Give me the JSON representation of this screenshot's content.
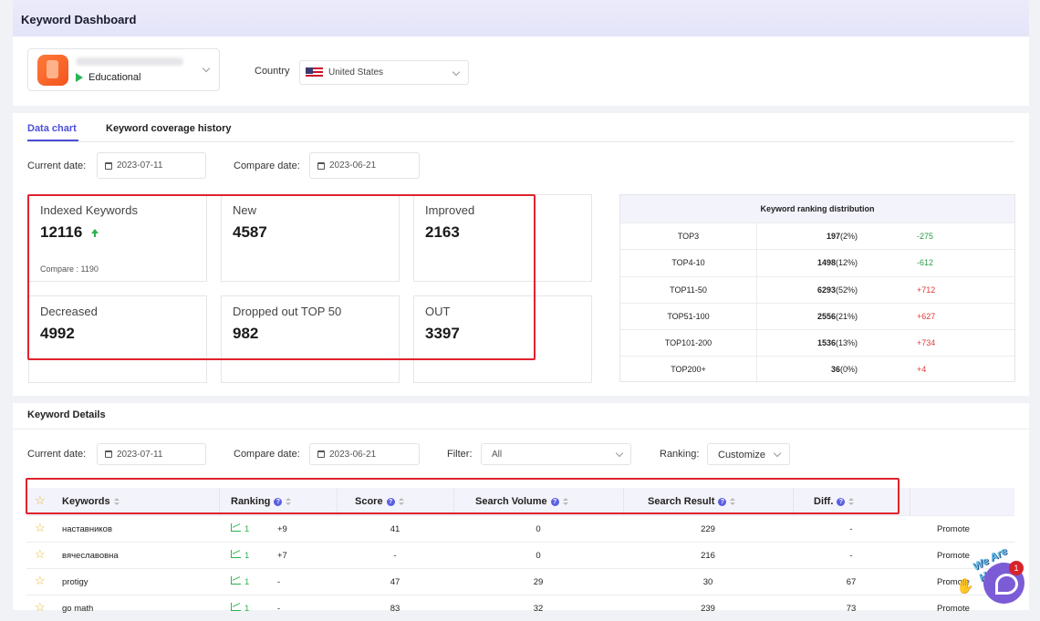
{
  "header": {
    "title": "Keyword Dashboard"
  },
  "app": {
    "category": "Educational"
  },
  "country": {
    "label": "Country",
    "value": "United States"
  },
  "tabs": [
    {
      "label": "Data chart"
    },
    {
      "label": "Keyword coverage history"
    }
  ],
  "dates": {
    "current_label": "Current date:",
    "current": "2023-07-11",
    "compare_label": "Compare date:",
    "compare": "2023-06-21"
  },
  "stats": [
    {
      "label": "Indexed Keywords",
      "value": "12116",
      "trend": "up",
      "compare": "Compare : 1190"
    },
    {
      "label": "New",
      "value": "4587"
    },
    {
      "label": "Improved",
      "value": "2163"
    },
    {
      "label": "Decreased",
      "value": "4992"
    },
    {
      "label": "Dropped out TOP 50",
      "value": "982"
    },
    {
      "label": "OUT",
      "value": "3397"
    }
  ],
  "distribution": {
    "title": "Keyword ranking distribution",
    "rows": [
      {
        "range": "TOP3",
        "count": "197",
        "pct": "(2%)",
        "change": "-275",
        "color": "#2b9a47"
      },
      {
        "range": "TOP4-10",
        "count": "1498",
        "pct": "(12%)",
        "change": "-612",
        "color": "#2b9a47"
      },
      {
        "range": "TOP11-50",
        "count": "6293",
        "pct": "(52%)",
        "change": "+712",
        "color": "#e53a3a"
      },
      {
        "range": "TOP51-100",
        "count": "2556",
        "pct": "(21%)",
        "change": "+627",
        "color": "#e53a3a"
      },
      {
        "range": "TOP101-200",
        "count": "1536",
        "pct": "(13%)",
        "change": "+734",
        "color": "#e53a3a"
      },
      {
        "range": "TOP200+",
        "count": "36",
        "pct": "(0%)",
        "change": "+4",
        "color": "#e53a3a"
      }
    ]
  },
  "details": {
    "title": "Keyword Details",
    "filter_label": "Filter:",
    "filter_value": "All",
    "ranking_label": "Ranking:",
    "ranking_value": "Customize",
    "columns": {
      "keywords": "Keywords",
      "ranking": "Ranking",
      "score": "Score",
      "volume": "Search Volume",
      "result": "Search Result",
      "diff": "Diff."
    },
    "rows": [
      {
        "keyword": "наставников",
        "rank": "1",
        "rank_change": "+9",
        "score": "41",
        "volume": "0",
        "result": "229",
        "diff": "-",
        "action": "Promote"
      },
      {
        "keyword": "вячеславовна",
        "rank": "1",
        "rank_change": "+7",
        "score": "-",
        "volume": "0",
        "result": "216",
        "diff": "-",
        "action": "Promote"
      },
      {
        "keyword": "protigy",
        "rank": "1",
        "rank_change": "-",
        "score": "47",
        "volume": "29",
        "result": "30",
        "diff": "67",
        "action": "Promote"
      },
      {
        "keyword": "go math",
        "rank": "1",
        "rank_change": "-",
        "score": "83",
        "volume": "32",
        "result": "239",
        "diff": "73",
        "action": "Promote"
      }
    ]
  },
  "widget": {
    "tagline": "We Are Here!",
    "badge": "1"
  }
}
